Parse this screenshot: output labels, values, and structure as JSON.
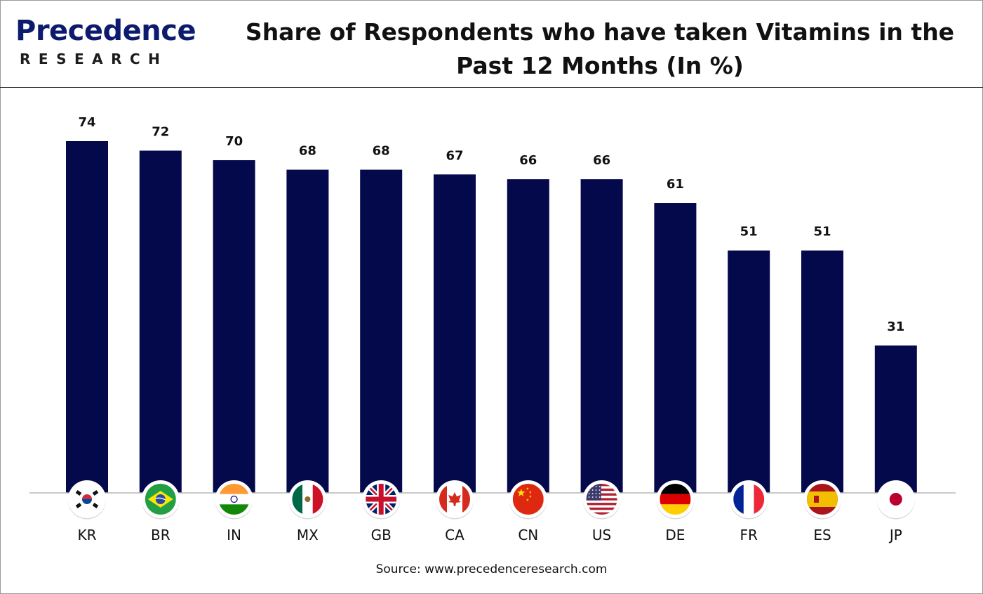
{
  "brand": {
    "name": "Precedence",
    "sub": "RESEARCH"
  },
  "title_line1": "Share of Respondents who have taken Vitamins in the",
  "title_line2": "Past 12 Months (In %)",
  "source": "Source: www.precedenceresearch.com",
  "colors": {
    "bar": "#03094b",
    "axis": "#b8b8b8",
    "brand": "#0d1b6e"
  },
  "chart_data": {
    "type": "bar",
    "title": "Share of Respondents who have taken Vitamins in the Past 12 Months (In %)",
    "categories": [
      "KR",
      "BR",
      "IN",
      "MX",
      "GB",
      "CA",
      "CN",
      "US",
      "DE",
      "FR",
      "ES",
      "JP"
    ],
    "values": [
      74,
      72,
      70,
      68,
      68,
      67,
      66,
      66,
      61,
      51,
      51,
      31
    ],
    "flag_icons": [
      "south-korea-flag-icon",
      "brazil-flag-icon",
      "india-flag-icon",
      "mexico-flag-icon",
      "uk-flag-icon",
      "canada-flag-icon",
      "china-flag-icon",
      "usa-flag-icon",
      "germany-flag-icon",
      "france-flag-icon",
      "spain-flag-icon",
      "japan-flag-icon"
    ],
    "data_labels": true,
    "ylim": [
      0,
      74
    ],
    "grid": false,
    "legend": "none",
    "xlabel": "",
    "ylabel": ""
  }
}
